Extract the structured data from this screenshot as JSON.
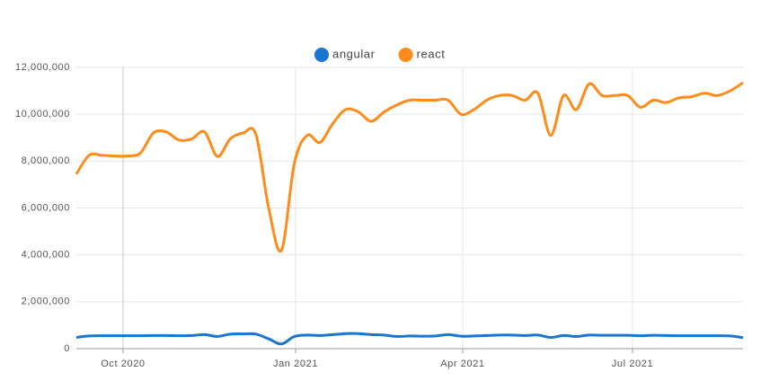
{
  "chart_data": {
    "type": "line",
    "series": [
      {
        "name": "angular",
        "color": "#1976d2",
        "values": [
          480000,
          540000,
          550000,
          550000,
          550000,
          550000,
          560000,
          560000,
          550000,
          560000,
          600000,
          520000,
          620000,
          630000,
          620000,
          420000,
          200000,
          520000,
          580000,
          560000,
          600000,
          640000,
          640000,
          600000,
          580000,
          520000,
          540000,
          530000,
          540000,
          600000,
          530000,
          540000,
          560000,
          580000,
          580000,
          560000,
          580000,
          480000,
          560000,
          520000,
          580000,
          570000,
          570000,
          570000,
          550000,
          570000,
          560000,
          550000,
          550000,
          550000,
          550000,
          540000,
          470000
        ]
      },
      {
        "name": "react",
        "color": "#ff8c1a",
        "values": [
          7450000,
          8250000,
          8250000,
          8220000,
          8220000,
          8350000,
          9200000,
          9250000,
          8900000,
          8950000,
          9250000,
          8200000,
          8950000,
          9200000,
          9150000,
          6000000,
          4200000,
          7900000,
          9100000,
          8800000,
          9600000,
          10200000,
          10100000,
          9700000,
          10100000,
          10400000,
          10600000,
          10600000,
          10600000,
          10600000,
          10000000,
          10200000,
          10600000,
          10800000,
          10800000,
          10600000,
          10900000,
          9100000,
          10800000,
          10200000,
          11300000,
          10800000,
          10800000,
          10800000,
          10300000,
          10600000,
          10500000,
          10700000,
          10750000,
          10900000,
          10800000,
          11000000,
          11350000
        ]
      }
    ],
    "xlim": [
      0,
      52
    ],
    "xticks": [
      {
        "value": 3.64,
        "label": "Oct 2020"
      },
      {
        "value": 17.1,
        "label": "Jan 2021"
      },
      {
        "value": 30.13,
        "label": "Apr 2021"
      },
      {
        "value": 43.38,
        "label": "Jul 2021"
      }
    ],
    "ylim": [
      0,
      12000000
    ],
    "yticks": [
      {
        "value": 0,
        "label": "0"
      },
      {
        "value": 2000000,
        "label": "2,000,000"
      },
      {
        "value": 4000000,
        "label": "4,000,000"
      },
      {
        "value": 6000000,
        "label": "6,000,000"
      },
      {
        "value": 8000000,
        "label": "8,000,000"
      },
      {
        "value": 10000000,
        "label": "10,000,000"
      },
      {
        "value": 12000000,
        "label": "12,000,000"
      }
    ],
    "grid": true,
    "legend": "top"
  }
}
